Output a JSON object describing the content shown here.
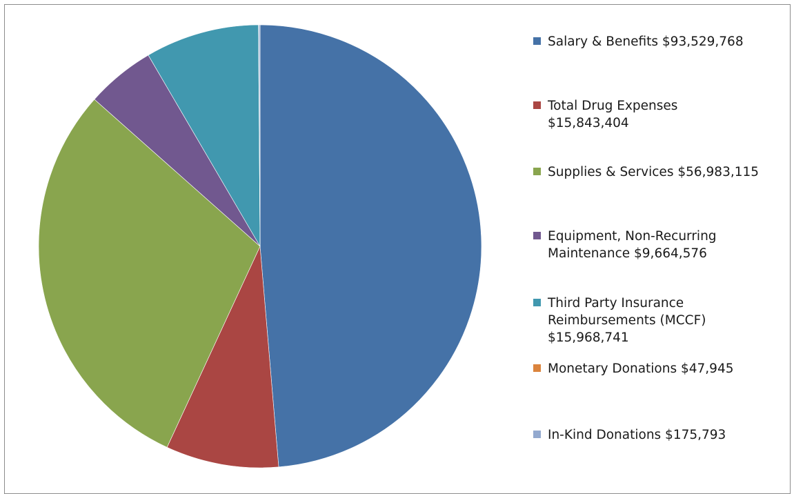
{
  "chart_data": {
    "type": "pie",
    "title": "",
    "legend_position": "right",
    "slices": [
      {
        "label": "Salary & Benefits $93,529,768",
        "name": "Salary & Benefits",
        "value": 93529768,
        "color": "#4572A7"
      },
      {
        "label": "Total Drug Expenses\n$15,843,404",
        "name": "Total Drug Expenses",
        "value": 15843404,
        "color": "#AA4643"
      },
      {
        "label": "Supplies & Services $56,983,115",
        "name": "Supplies & Services",
        "value": 56983115,
        "color": "#89A54E"
      },
      {
        "label": "Equipment, Non-Recurring\nMaintenance $9,664,576",
        "name": "Equipment, Non-Recurring Maintenance",
        "value": 9664576,
        "color": "#71588F"
      },
      {
        "label": "Third Party Insurance\nReimbursements (MCCF)\n$15,968,741",
        "name": "Third Party Insurance Reimbursements (MCCF)",
        "value": 15968741,
        "color": "#4198AF"
      },
      {
        "label": "Monetary Donations $47,945",
        "name": "Monetary Donations",
        "value": 47945,
        "color": "#DB843D"
      },
      {
        "label": "In-Kind Donations $175,793",
        "name": "In-Kind Donations",
        "value": 175793,
        "color": "#93A9CF"
      }
    ]
  }
}
